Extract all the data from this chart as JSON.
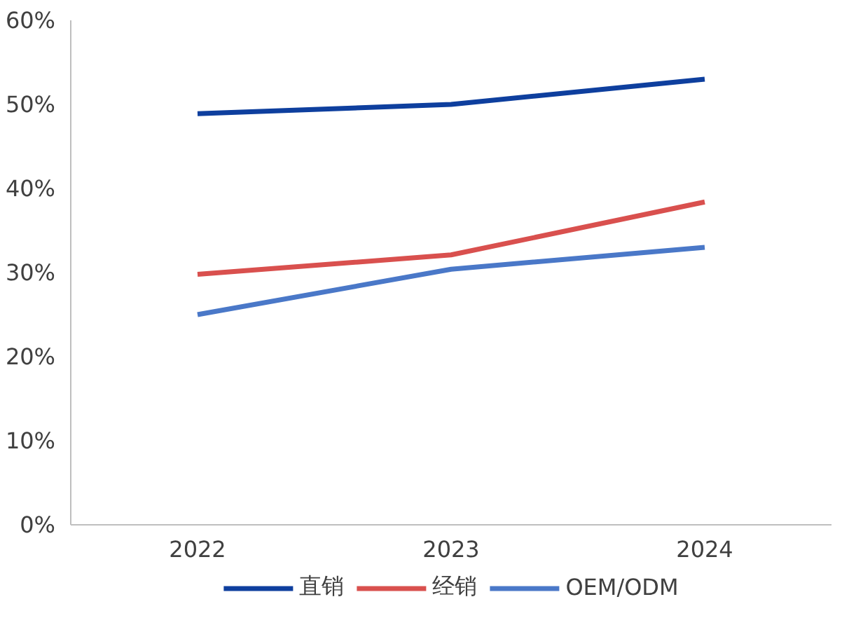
{
  "chart_data": {
    "type": "line",
    "categories": [
      "2022",
      "2023",
      "2024"
    ],
    "series": [
      {
        "name": "直销",
        "color": "#0e3f9e",
        "values": [
          48.9,
          50.0,
          53.0
        ]
      },
      {
        "name": "经销",
        "color": "#d9504e",
        "values": [
          29.8,
          32.1,
          38.4
        ]
      },
      {
        "name": "OEM/ODM",
        "color": "#4a78c8",
        "values": [
          25.0,
          30.4,
          33.0
        ]
      }
    ],
    "ylim": [
      0,
      60
    ],
    "yticks": [
      {
        "value": 0,
        "label": "0%"
      },
      {
        "value": 10,
        "label": "10%"
      },
      {
        "value": 20,
        "label": "20%"
      },
      {
        "value": 30,
        "label": "30%"
      },
      {
        "value": 40,
        "label": "40%"
      },
      {
        "value": 50,
        "label": "50%"
      },
      {
        "value": 60,
        "label": "60%"
      }
    ],
    "grid": false,
    "legend": "bottom",
    "marker": "none",
    "line_style": "solid"
  }
}
